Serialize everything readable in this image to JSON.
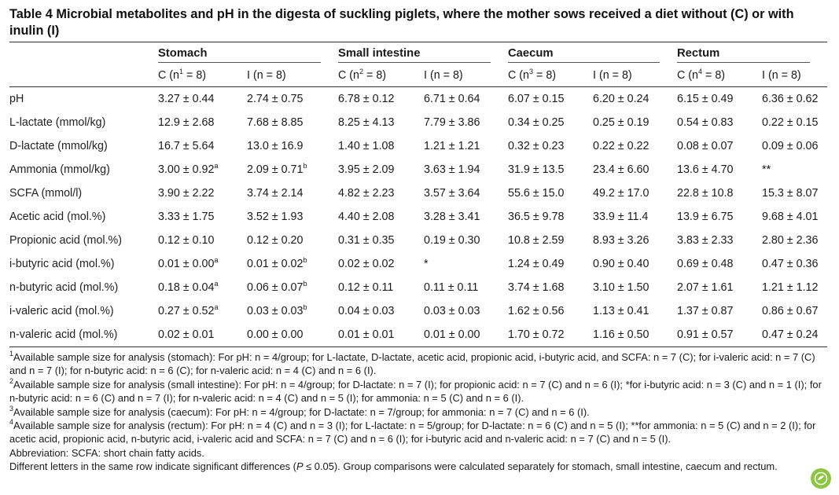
{
  "title": "Table 4 Microbial metabolites and pH in the digesta of suckling piglets, where the mother sows received a diet without (C) or with inulin (I)",
  "groups": [
    "Stomach",
    "Small intestine",
    "Caecum",
    "Rectum"
  ],
  "subheaders": [
    {
      "pre": "C (n",
      "sup": "1",
      "post": " = 8)"
    },
    {
      "pre": "I (n = 8)",
      "sup": "",
      "post": ""
    },
    {
      "pre": "C (n",
      "sup": "2",
      "post": " = 8)"
    },
    {
      "pre": "I (n = 8)",
      "sup": "",
      "post": ""
    },
    {
      "pre": "C (n",
      "sup": "3",
      "post": " = 8)"
    },
    {
      "pre": "I (n = 8)",
      "sup": "",
      "post": ""
    },
    {
      "pre": "C (n",
      "sup": "4",
      "post": " = 8)"
    },
    {
      "pre": "I (n = 8)",
      "sup": "",
      "post": ""
    }
  ],
  "rows": [
    {
      "label": "pH",
      "cells": [
        {
          "v": "3.27 ± 0.44",
          "s": ""
        },
        {
          "v": "2.74 ± 0.75",
          "s": ""
        },
        {
          "v": "6.78 ± 0.12",
          "s": ""
        },
        {
          "v": "6.71 ± 0.64",
          "s": ""
        },
        {
          "v": "6.07 ± 0.15",
          "s": ""
        },
        {
          "v": "6.20 ± 0.24",
          "s": ""
        },
        {
          "v": "6.15 ± 0.49",
          "s": ""
        },
        {
          "v": "6.36 ± 0.62",
          "s": ""
        }
      ]
    },
    {
      "label": "L-lactate (mmol/kg)",
      "cells": [
        {
          "v": "12.9 ± 2.68",
          "s": ""
        },
        {
          "v": "7.68 ± 8.85",
          "s": ""
        },
        {
          "v": "8.25 ± 4.13",
          "s": ""
        },
        {
          "v": "7.79 ± 3.86",
          "s": ""
        },
        {
          "v": "0.34 ± 0.25",
          "s": ""
        },
        {
          "v": "0.25 ± 0.19",
          "s": ""
        },
        {
          "v": "0.54 ± 0.83",
          "s": ""
        },
        {
          "v": "0.22 ± 0.15",
          "s": ""
        }
      ]
    },
    {
      "label": "D-lactate (mmol/kg)",
      "cells": [
        {
          "v": "16.7 ± 5.64",
          "s": ""
        },
        {
          "v": "13.0 ± 16.9",
          "s": ""
        },
        {
          "v": "1.40 ± 1.08",
          "s": ""
        },
        {
          "v": "1.21 ± 1.21",
          "s": ""
        },
        {
          "v": "0.32 ± 0.23",
          "s": ""
        },
        {
          "v": "0.22 ± 0.22",
          "s": ""
        },
        {
          "v": "0.08 ± 0.07",
          "s": ""
        },
        {
          "v": "0.09 ± 0.06",
          "s": ""
        }
      ]
    },
    {
      "label": "Ammonia (mmol/kg)",
      "cells": [
        {
          "v": "3.00 ± 0.92",
          "s": "a"
        },
        {
          "v": "2.09 ± 0.71",
          "s": "b"
        },
        {
          "v": "3.95 ± 2.09",
          "s": ""
        },
        {
          "v": "3.63 ± 1.94",
          "s": ""
        },
        {
          "v": "31.9 ± 13.5",
          "s": ""
        },
        {
          "v": "23.4 ± 6.60",
          "s": ""
        },
        {
          "v": "13.6 ± 4.70",
          "s": ""
        },
        {
          "v": "**",
          "s": ""
        }
      ]
    },
    {
      "label": "SCFA (mmol/l)",
      "cells": [
        {
          "v": "3.90 ± 2.22",
          "s": ""
        },
        {
          "v": "3.74 ± 2.14",
          "s": ""
        },
        {
          "v": "4.82 ± 2.23",
          "s": ""
        },
        {
          "v": "3.57 ± 3.64",
          "s": ""
        },
        {
          "v": "55.6 ± 15.0",
          "s": ""
        },
        {
          "v": "49.2 ± 17.0",
          "s": ""
        },
        {
          "v": "22.8 ± 10.8",
          "s": ""
        },
        {
          "v": "15.3 ± 8.07",
          "s": ""
        }
      ]
    },
    {
      "label": "Acetic acid (mol.%)",
      "cells": [
        {
          "v": "3.33 ± 1.75",
          "s": ""
        },
        {
          "v": "3.52 ± 1.93",
          "s": ""
        },
        {
          "v": "4.40 ± 2.08",
          "s": ""
        },
        {
          "v": "3.28 ± 3.41",
          "s": ""
        },
        {
          "v": "36.5 ± 9.78",
          "s": ""
        },
        {
          "v": "33.9 ± 11.4",
          "s": ""
        },
        {
          "v": "13.9 ± 6.75",
          "s": ""
        },
        {
          "v": "9.68 ± 4.01",
          "s": ""
        }
      ]
    },
    {
      "label": "Propionic acid (mol.%)",
      "cells": [
        {
          "v": "0.12 ± 0.10",
          "s": ""
        },
        {
          "v": "0.12 ± 0.20",
          "s": ""
        },
        {
          "v": "0.31 ± 0.35",
          "s": ""
        },
        {
          "v": "0.19 ± 0.30",
          "s": ""
        },
        {
          "v": "10.8 ± 2.59",
          "s": ""
        },
        {
          "v": "8.93 ± 3.26",
          "s": ""
        },
        {
          "v": "3.83 ± 2.33",
          "s": ""
        },
        {
          "v": "2.80 ± 2.36",
          "s": ""
        }
      ]
    },
    {
      "label": "i-butyric acid (mol.%)",
      "cells": [
        {
          "v": "0.01 ± 0.00",
          "s": "a"
        },
        {
          "v": "0.01 ± 0.02",
          "s": "b"
        },
        {
          "v": "0.02 ± 0.02",
          "s": ""
        },
        {
          "v": "*",
          "s": ""
        },
        {
          "v": "1.24 ± 0.49",
          "s": ""
        },
        {
          "v": "0.90 ± 0.40",
          "s": ""
        },
        {
          "v": "0.69 ± 0.48",
          "s": ""
        },
        {
          "v": "0.47 ± 0.36",
          "s": ""
        }
      ]
    },
    {
      "label": "n-butyric acid (mol.%)",
      "cells": [
        {
          "v": "0.18 ± 0.04",
          "s": "a"
        },
        {
          "v": "0.06 ± 0.07",
          "s": "b"
        },
        {
          "v": "0.12 ± 0.11",
          "s": ""
        },
        {
          "v": "0.11 ± 0.11",
          "s": ""
        },
        {
          "v": "3.74 ± 1.68",
          "s": ""
        },
        {
          "v": "3.10 ± 1.50",
          "s": ""
        },
        {
          "v": "2.07 ± 1.61",
          "s": ""
        },
        {
          "v": "1.21 ± 1.12",
          "s": ""
        }
      ]
    },
    {
      "label": "i-valeric acid (mol.%)",
      "cells": [
        {
          "v": "0.27 ± 0.52",
          "s": "a"
        },
        {
          "v": "0.03 ± 0.03",
          "s": "b"
        },
        {
          "v": "0.04 ± 0.03",
          "s": ""
        },
        {
          "v": "0.03 ± 0.03",
          "s": ""
        },
        {
          "v": "1.62 ± 0.56",
          "s": ""
        },
        {
          "v": "1.13 ± 0.41",
          "s": ""
        },
        {
          "v": "1.37 ± 0.87",
          "s": ""
        },
        {
          "v": "0.86 ± 0.67",
          "s": ""
        }
      ]
    },
    {
      "label": "n-valeric acid (mol.%)",
      "cells": [
        {
          "v": "0.02 ± 0.01",
          "s": ""
        },
        {
          "v": "0.00 ± 0.00",
          "s": ""
        },
        {
          "v": "0.01 ± 0.01",
          "s": ""
        },
        {
          "v": "0.01 ± 0.00",
          "s": ""
        },
        {
          "v": "1.70 ± 0.72",
          "s": ""
        },
        {
          "v": "1.16 ± 0.50",
          "s": ""
        },
        {
          "v": "0.91 ± 0.57",
          "s": ""
        },
        {
          "v": "0.47 ± 0.24",
          "s": ""
        }
      ]
    }
  ],
  "footnotes": [
    {
      "sup": "1",
      "text": "Available sample size for analysis (stomach): For pH: n = 4/group; for L-lactate, D-lactate, acetic acid, propionic acid, i-butyric acid, and SCFA: n = 7 (C); for i-valeric acid: n = 7 (C) and n = 7 (I); for n-butyric acid: n = 6 (C); for n-valeric acid: n = 4 (C) and n = 6 (I)."
    },
    {
      "sup": "2",
      "text": "Available sample size for analysis (small intestine): For pH: n = 4/group; for D-lactate: n = 7 (I); for propionic acid: n = 7 (C) and n = 6 (I); *for i-butyric acid: n = 3 (C) and n = 1 (I); for n-butyric acid: n = 6 (C) and n = 7 (I); for n-valeric acid: n = 4 (C) and n = 5 (I); for ammonia: n = 5 (C) and n = 6 (I)."
    },
    {
      "sup": "3",
      "text": "Available sample size for analysis (caecum): For pH: n = 4/group; for D-lactate: n = 7/group; for ammonia: n = 7 (C) and n = 6 (I)."
    },
    {
      "sup": "4",
      "text": "Available sample size for analysis (rectum): For pH: n = 4 (C) and n = 3 (I); for L-lactate: n = 5/group; for D-lactate: n = 6 (C) and n = 5 (I); **for ammonia: n = 5 (C) and n = 2 (I); for acetic acid, propionic acid, n-butyric acid, i-valeric acid and SCFA: n = 7 (C) and n = 6 (I); for i-butyric acid and n-valeric acid: n = 7 (C) and n = 5 (I)."
    }
  ],
  "abbreviation": "Abbreviation: SCFA: short chain fatty acids.",
  "letters_note_pre": "Different letters in the same row indicate significant differences (",
  "letters_note_italic": "P",
  "letters_note_post": " ≤ 0.05). Group comparisons were calculated separately for stomach, small intestine, caecum and rectum.",
  "badge_icon": "publisher-logo-icon",
  "badge_color": "#8cc63e"
}
